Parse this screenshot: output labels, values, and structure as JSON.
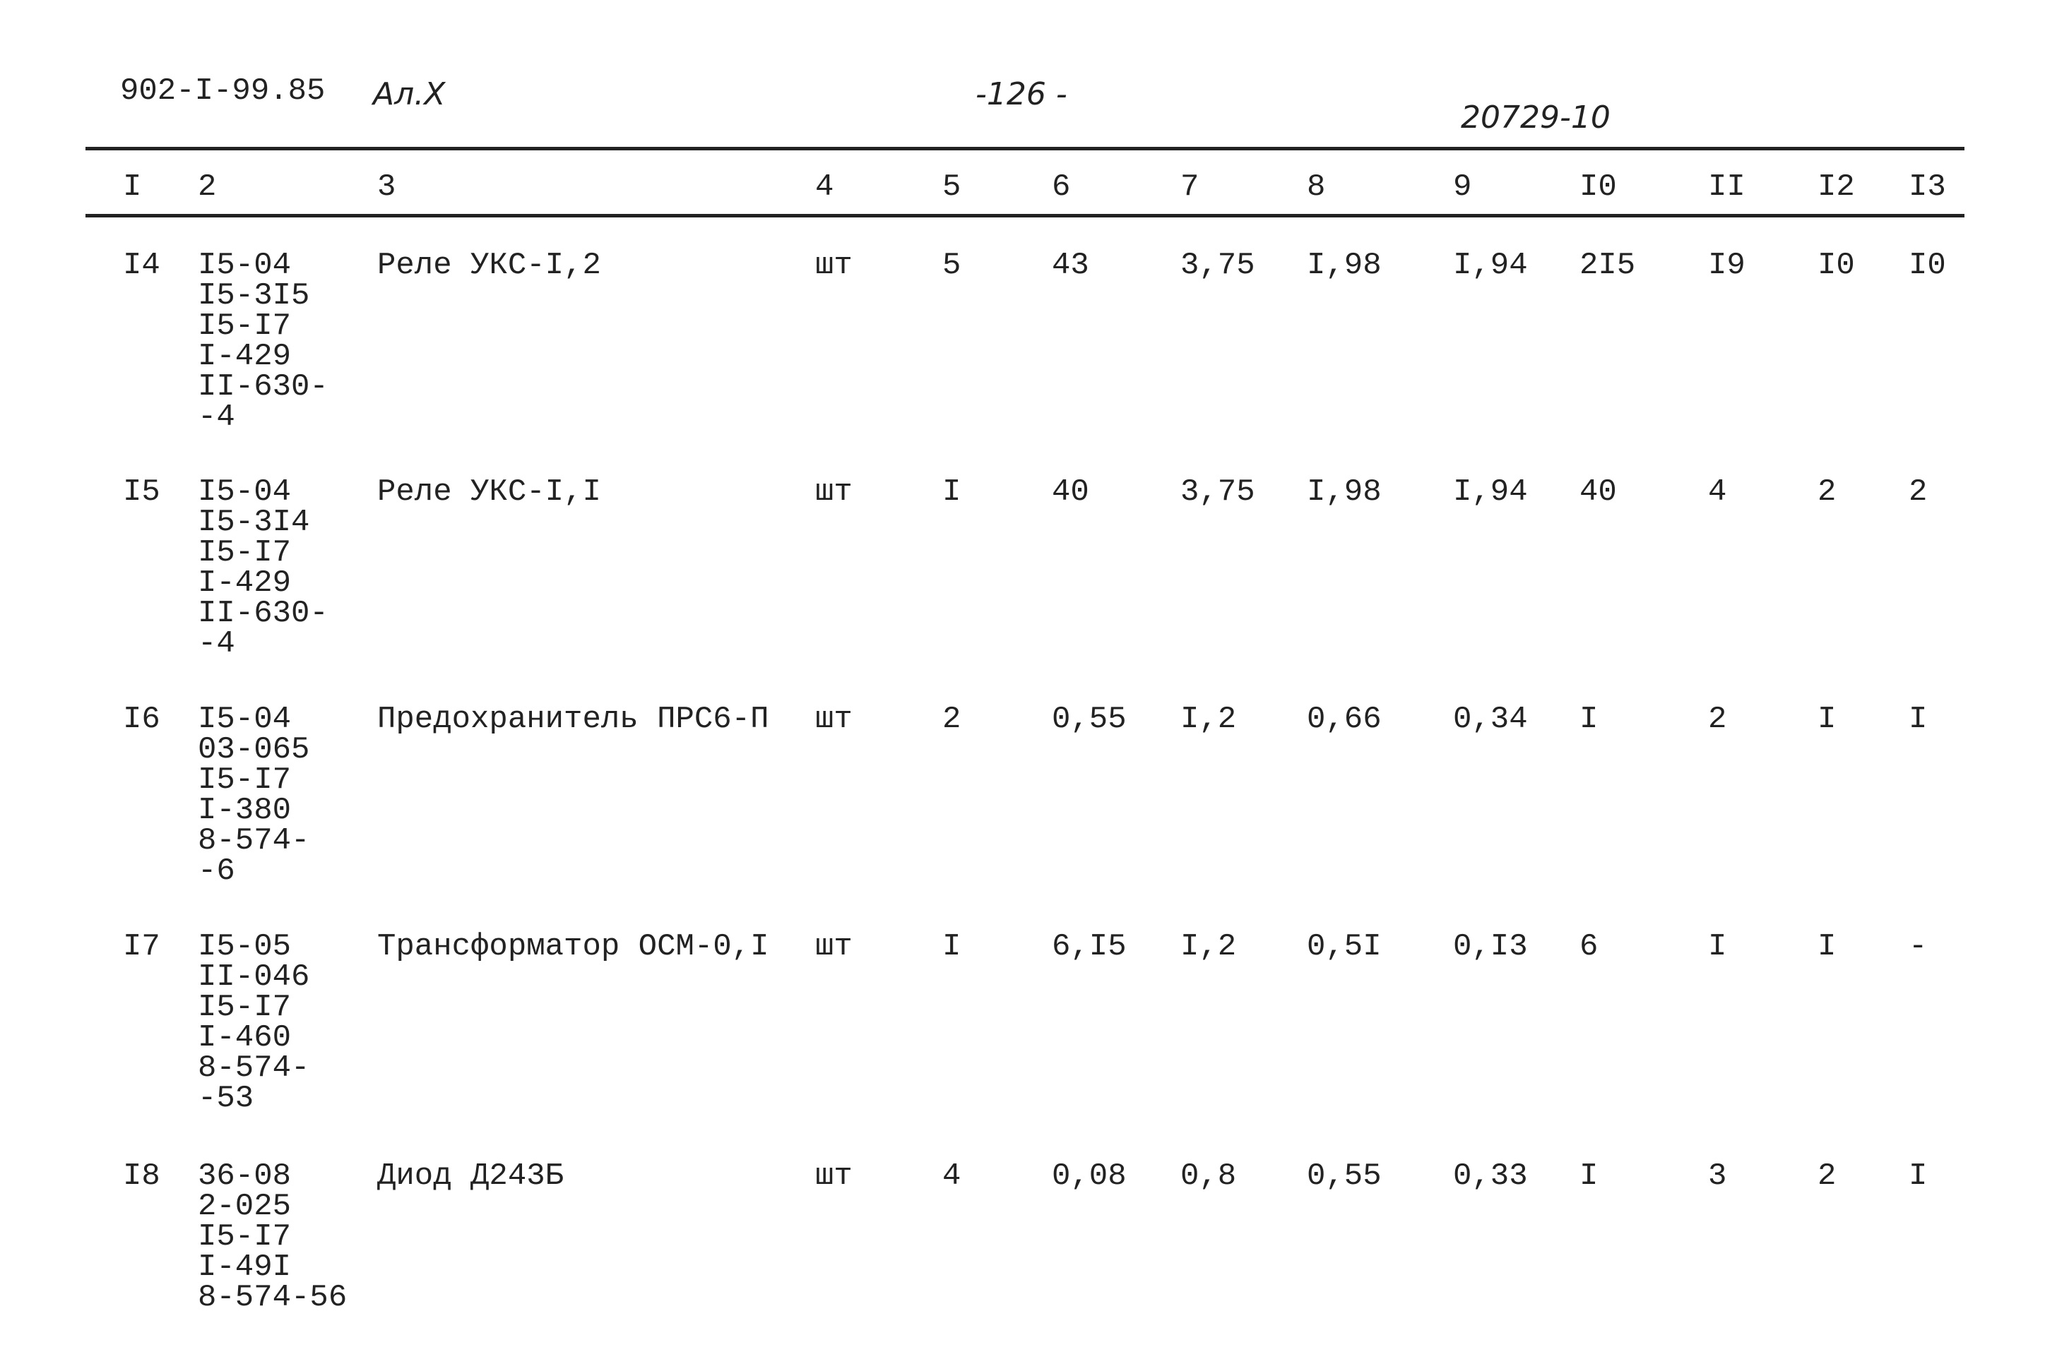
{
  "header": {
    "left": "902-I-99.85",
    "note": "Ал.Х",
    "page": "-126 -",
    "right": "20729-10"
  },
  "table": {
    "columns": [
      "I",
      "2",
      "3",
      "4",
      "5",
      "6",
      "7",
      "8",
      "9",
      "I0",
      "II",
      "I2",
      "I3"
    ],
    "rows": [
      [
        "I4",
        [
          "I5-04",
          "I5-3I5",
          "I5-I7",
          "I-429",
          "II-630-",
          "-4"
        ],
        "Реле УКС-I,2",
        "шт",
        "5",
        "43",
        "3,75",
        "I,98",
        "I,94",
        "2I5",
        "I9",
        "I0",
        "I0"
      ],
      [
        "I5",
        [
          "I5-04",
          "I5-3I4",
          "I5-I7",
          "I-429",
          "II-630-",
          "-4"
        ],
        "Реле УКС-I,I",
        "шт",
        "I",
        "40",
        "3,75",
        "I,98",
        "I,94",
        "40",
        "4",
        "2",
        "2"
      ],
      [
        "I6",
        [
          "I5-04",
          "03-065",
          "I5-I7",
          "I-380",
          "8-574-",
          "-6"
        ],
        "Предохранитель ПРС6-П",
        "шт",
        "2",
        "0,55",
        "I,2",
        "0,66",
        "0,34",
        "I",
        "2",
        "I",
        "I"
      ],
      [
        "I7",
        [
          "I5-05",
          "II-046",
          "I5-I7",
          "I-460",
          "8-574-",
          "-53"
        ],
        "Трансформатор ОСМ-0,I",
        "шт",
        "I",
        "6,I5",
        "I,2",
        "0,5I",
        "0,I3",
        "6",
        "I",
        "I",
        "-"
      ],
      [
        "I8",
        [
          "36-08",
          "2-025",
          "I5-I7",
          "I-49I",
          "8-574-56"
        ],
        "Диод Д243Б",
        "шт",
        "4",
        "0,08",
        "0,8",
        "0,55",
        "0,33",
        "I",
        "3",
        "2",
        "I"
      ]
    ]
  }
}
